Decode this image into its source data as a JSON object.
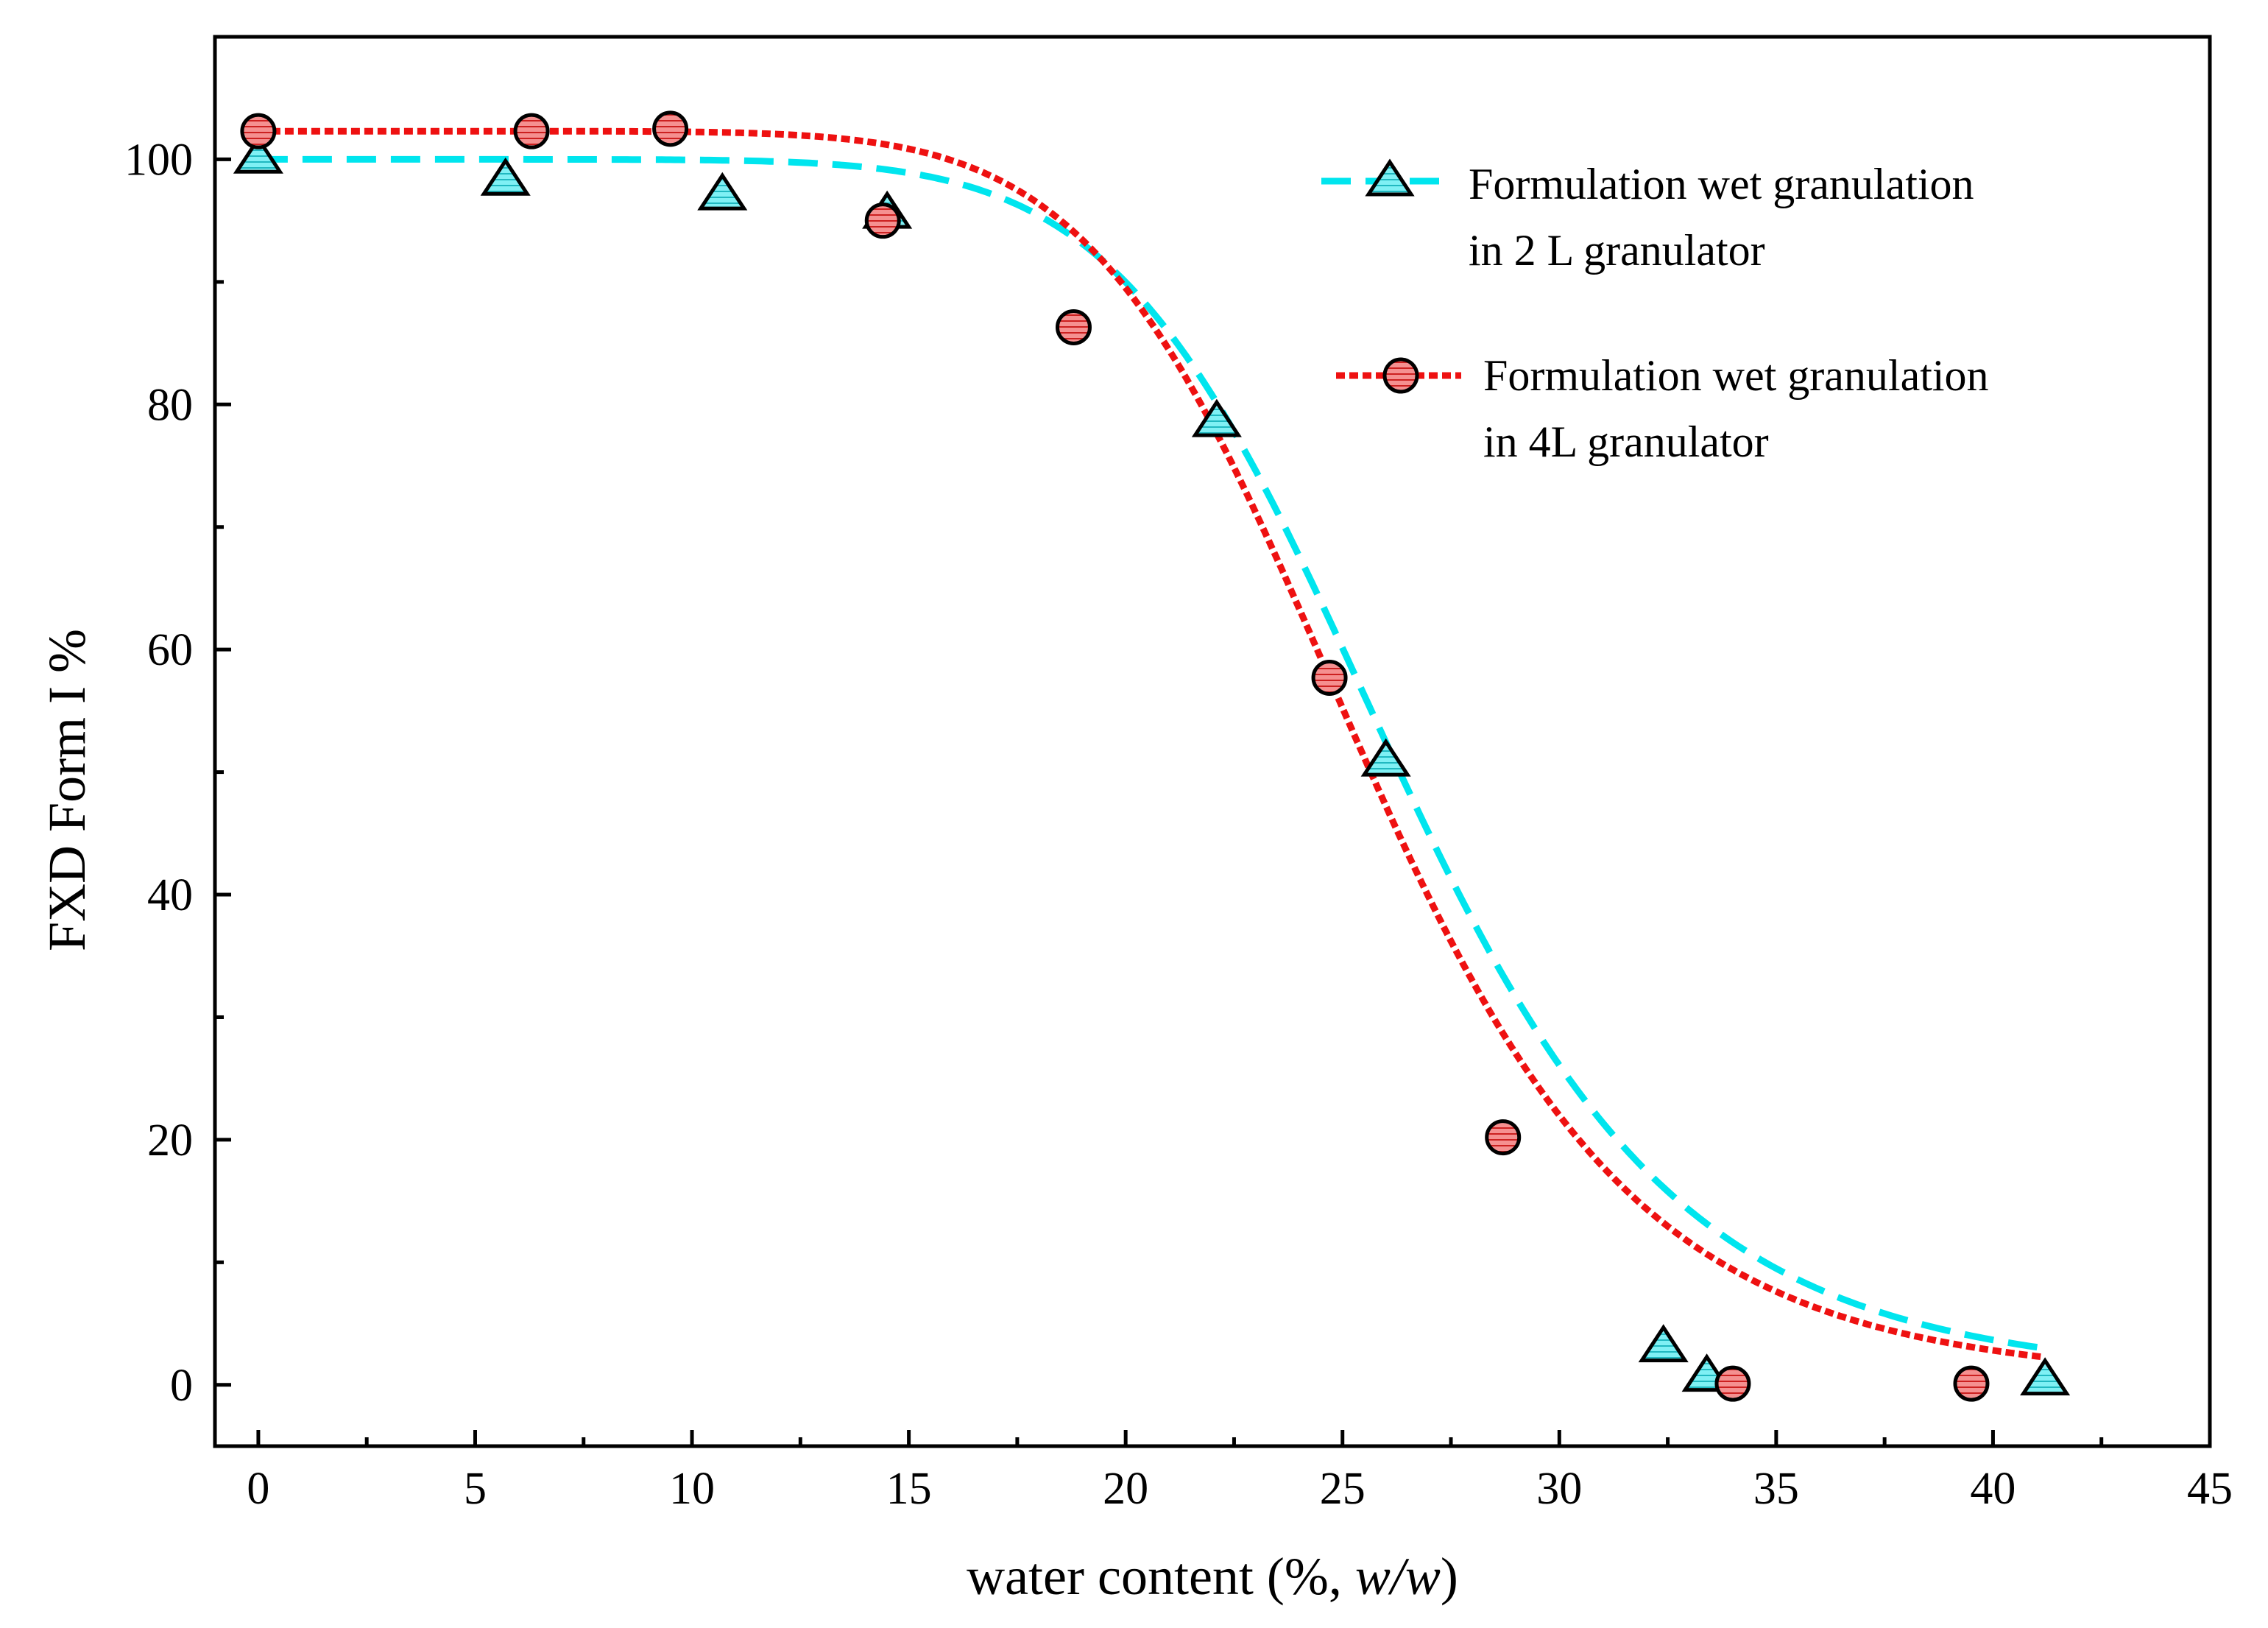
{
  "chart_data": {
    "type": "scatter",
    "title": "",
    "xlabel_parts": [
      "water content (%, ",
      "w/w",
      ")"
    ],
    "ylabel": "FXD Form I %",
    "xlim": [
      -1,
      45
    ],
    "ylim": [
      -5,
      110
    ],
    "xticks": [
      0,
      5,
      10,
      15,
      20,
      25,
      30,
      35,
      40,
      45
    ],
    "yticks": [
      0,
      20,
      40,
      60,
      80,
      100
    ],
    "xtick_labels": [
      "0",
      "5",
      "10",
      "15",
      "20",
      "25",
      "30",
      "35",
      "40",
      "45"
    ],
    "ytick_labels": [
      "0",
      "20",
      "40",
      "60",
      "80",
      "100"
    ],
    "grid": false,
    "legend_position": "top-right",
    "series": [
      {
        "name_line1": "Formulation wet granulation",
        "name_line2": "in 2 L granulator",
        "marker": "triangle",
        "color": "#00e5ee",
        "fill": "#7ff0f4",
        "x": [
          0,
          5.7,
          10.7,
          14.5,
          22.1,
          26.0,
          32.4,
          33.4,
          41.2
        ],
        "y": [
          100,
          98.2,
          97.0,
          95.5,
          78.5,
          50.8,
          3.0,
          0.6,
          0.3
        ],
        "fit": {
          "top": 100,
          "bottom": 0.3,
          "x0": 26.3,
          "p": 8.0
        }
      },
      {
        "name_line1": "Formulation wet granulation",
        "name_line2": "in 4L granulator",
        "marker": "circle",
        "color": "#ee1111",
        "fill": "#f59090",
        "x": [
          0,
          6.3,
          9.5,
          14.4,
          18.8,
          24.7,
          28.7,
          34.0,
          39.5
        ],
        "y": [
          102.3,
          102.3,
          102.5,
          95.0,
          86.3,
          57.7,
          20.2,
          0.1,
          0.1
        ],
        "fit": {
          "top": 102.3,
          "bottom": 0.1,
          "x0": 25.5,
          "p": 8.0
        }
      }
    ]
  },
  "colors": {
    "axis": "#000000",
    "background": "#ffffff"
  }
}
